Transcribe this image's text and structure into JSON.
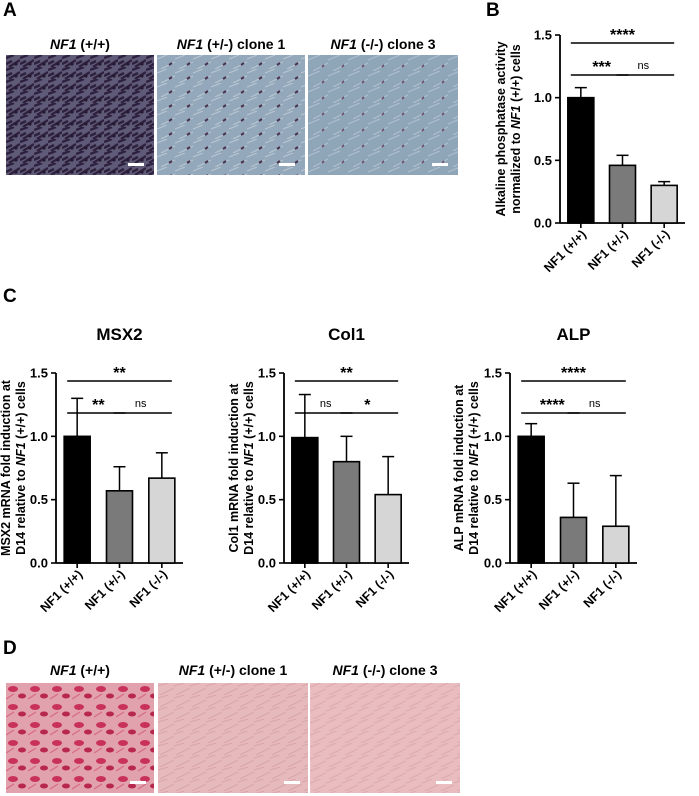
{
  "panels": {
    "A": {
      "label": "A",
      "images": [
        {
          "gene": "NF1",
          "suffix": " (+/+)"
        },
        {
          "gene": "NF1",
          "suffix": " (+/-) clone 1"
        },
        {
          "gene": "NF1",
          "suffix": " (-/-) clone 3"
        }
      ]
    },
    "B": {
      "label": "B"
    },
    "C": {
      "label": "C"
    },
    "D": {
      "label": "D",
      "images": [
        {
          "gene": "NF1",
          "suffix": " (+/+)"
        },
        {
          "gene": "NF1",
          "suffix": " (+/-) clone 1"
        },
        {
          "gene": "NF1",
          "suffix": " (-/-) clone 3"
        }
      ]
    }
  },
  "colors": {
    "wt": "#000000",
    "het": "#7a7a7a",
    "ko": "#d6d6d6",
    "stainA_dark": "#3a2a4a",
    "stainA_light": "#8fa3b5",
    "stainD_dark": "#c8325a",
    "stainD_light": "#e9b8bd"
  },
  "chart_data": [
    {
      "id": "B",
      "type": "bar",
      "title": "",
      "categories": [
        "NF1 (+/+)",
        "NF1 (+/-)",
        "NF1 (-/-)"
      ],
      "values": [
        1.0,
        0.46,
        0.3
      ],
      "errors": [
        0.08,
        0.08,
        0.03
      ],
      "ylabel_lines": [
        "Alkaline phosphatase activity",
        "normalized to NF1 (+/+) cells"
      ],
      "ylim": [
        0,
        1.5
      ],
      "yticks": [
        "0.0",
        "0.5",
        "1.0",
        "1.5"
      ],
      "significance": [
        {
          "from": 0,
          "to": 2,
          "label": "****",
          "level": 1
        },
        {
          "from": 0,
          "to": 1,
          "label": "***",
          "level": 0
        },
        {
          "from": 1,
          "to": 2,
          "label": "ns",
          "level": 0
        }
      ]
    },
    {
      "id": "MSX2",
      "type": "bar",
      "title": "MSX2",
      "categories": [
        "NF1 (+/+)",
        "NF1 (+/-)",
        "NF1 (-/-)"
      ],
      "values": [
        1.0,
        0.57,
        0.67
      ],
      "errors": [
        0.3,
        0.19,
        0.2
      ],
      "ylabel_lines": [
        "MSX2 mRNA fold induction at",
        "D14 relative to NF1 (+/+) cells"
      ],
      "ylim": [
        0,
        1.5
      ],
      "yticks": [
        "0.0",
        "0.5",
        "1.0",
        "1.5"
      ],
      "significance": [
        {
          "from": 0,
          "to": 2,
          "label": "**",
          "level": 1
        },
        {
          "from": 0,
          "to": 1,
          "label": "**",
          "level": 0
        },
        {
          "from": 1,
          "to": 2,
          "label": "ns",
          "level": 0
        }
      ]
    },
    {
      "id": "Col1",
      "type": "bar",
      "title": "Col1",
      "categories": [
        "NF1 (+/+)",
        "NF1 (+/-)",
        "NF1 (-/-)"
      ],
      "values": [
        0.99,
        0.8,
        0.54
      ],
      "errors": [
        0.34,
        0.2,
        0.3
      ],
      "ylabel_lines": [
        "Col1 mRNA fold induction at",
        "D14 relative to NF1 (+/+) cells"
      ],
      "ylim": [
        0,
        1.5
      ],
      "yticks": [
        "0.0",
        "0.5",
        "1.0",
        "1.5"
      ],
      "significance": [
        {
          "from": 0,
          "to": 2,
          "label": "**",
          "level": 1
        },
        {
          "from": 0,
          "to": 1,
          "label": "ns",
          "level": 0
        },
        {
          "from": 1,
          "to": 2,
          "label": "*",
          "level": 0
        }
      ]
    },
    {
      "id": "ALP",
      "type": "bar",
      "title": "ALP",
      "categories": [
        "NF1 (+/+)",
        "NF1 (+/-)",
        "NF1 (-/-)"
      ],
      "values": [
        1.0,
        0.36,
        0.29
      ],
      "errors": [
        0.1,
        0.27,
        0.4
      ],
      "ylabel_lines": [
        "ALP mRNA fold induction at",
        "D14 relative to NF1 (+/+) cells"
      ],
      "ylim": [
        0,
        1.5
      ],
      "yticks": [
        "0.0",
        "0.5",
        "1.0",
        "1.5"
      ],
      "significance": [
        {
          "from": 0,
          "to": 2,
          "label": "****",
          "level": 1
        },
        {
          "from": 0,
          "to": 1,
          "label": "****",
          "level": 0
        },
        {
          "from": 1,
          "to": 2,
          "label": "ns",
          "level": 0
        }
      ]
    }
  ]
}
